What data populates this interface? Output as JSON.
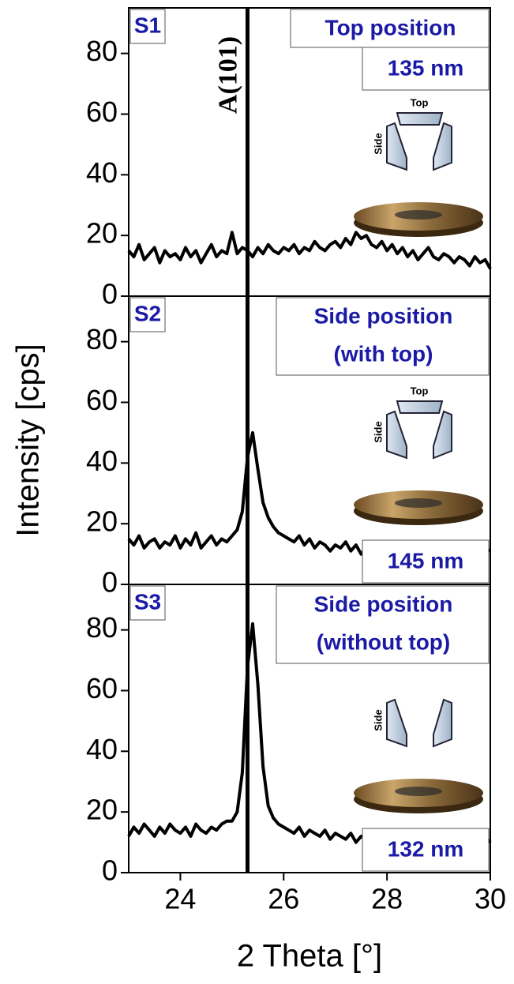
{
  "chart_data": [
    {
      "type": "line",
      "panel_label": "S1",
      "annotation": [
        "Top position"
      ],
      "thickness": "135 nm",
      "vline": 25.3,
      "vline_label": "A(101)",
      "icon": {
        "top": "Top",
        "side": "Side"
      },
      "xlim": [
        23,
        30
      ],
      "ylim": [
        0,
        95
      ],
      "yticks": [
        0,
        20,
        40,
        60,
        80
      ],
      "color": "#000000",
      "x": [
        23.0,
        23.1,
        23.2,
        23.3,
        23.4,
        23.5,
        23.6,
        23.7,
        23.8,
        23.9,
        24.0,
        24.1,
        24.2,
        24.3,
        24.4,
        24.5,
        24.6,
        24.7,
        24.8,
        24.9,
        25.0,
        25.1,
        25.2,
        25.3,
        25.4,
        25.5,
        25.6,
        25.7,
        25.8,
        25.9,
        26.0,
        26.1,
        26.2,
        26.3,
        26.4,
        26.5,
        26.6,
        26.7,
        26.8,
        26.9,
        27.0,
        27.1,
        27.2,
        27.3,
        27.4,
        27.5,
        27.6,
        27.7,
        27.8,
        27.9,
        28.0,
        28.1,
        28.2,
        28.3,
        28.4,
        28.5,
        28.6,
        28.7,
        28.8,
        28.9,
        29.0,
        29.1,
        29.2,
        29.3,
        29.4,
        29.5,
        29.6,
        29.7,
        29.8,
        29.9,
        30.0
      ],
      "values": [
        15,
        13,
        17,
        12,
        14,
        16,
        11,
        15,
        13,
        14,
        12,
        16,
        13,
        15,
        11,
        14,
        17,
        13,
        15,
        14,
        21,
        14,
        16,
        15,
        13,
        16,
        14,
        17,
        15,
        14,
        16,
        15,
        17,
        14,
        16,
        15,
        18,
        16,
        15,
        17,
        18,
        16,
        19,
        17,
        21,
        19,
        20,
        17,
        16,
        18,
        15,
        17,
        14,
        16,
        13,
        15,
        12,
        14,
        16,
        13,
        12,
        14,
        13,
        11,
        13,
        12,
        10,
        13,
        11,
        12,
        9
      ]
    },
    {
      "type": "line",
      "panel_label": "S2",
      "annotation": [
        "Side position",
        "(with top)"
      ],
      "thickness": "145 nm",
      "vline": 25.3,
      "icon": {
        "top": "Top",
        "side": "Side"
      },
      "ylabel": "Intensity [cps]",
      "xlim": [
        23,
        30
      ],
      "ylim": [
        0,
        95
      ],
      "yticks": [
        0,
        20,
        40,
        60,
        80
      ],
      "color": "#000000",
      "x": [
        23.0,
        23.1,
        23.2,
        23.3,
        23.4,
        23.5,
        23.6,
        23.7,
        23.8,
        23.9,
        24.0,
        24.1,
        24.2,
        24.3,
        24.4,
        24.5,
        24.6,
        24.7,
        24.8,
        24.9,
        25.0,
        25.1,
        25.2,
        25.3,
        25.4,
        25.5,
        25.6,
        25.7,
        25.8,
        25.9,
        26.0,
        26.1,
        26.2,
        26.3,
        26.4,
        26.5,
        26.6,
        26.7,
        26.8,
        26.9,
        27.0,
        27.1,
        27.2,
        27.3,
        27.4,
        27.5,
        27.6,
        27.7,
        27.8,
        27.9,
        28.0,
        28.1,
        28.2,
        28.3,
        28.4,
        28.5,
        28.6,
        28.7,
        28.8,
        28.9,
        29.0,
        29.1,
        29.2,
        29.3,
        29.4,
        29.5,
        29.6,
        29.7,
        29.8,
        29.9,
        30.0
      ],
      "values": [
        15,
        13,
        16,
        12,
        14,
        15,
        12,
        14,
        13,
        16,
        12,
        15,
        13,
        17,
        12,
        14,
        16,
        13,
        15,
        14,
        16,
        18,
        24,
        42,
        50,
        38,
        27,
        22,
        19,
        17,
        16,
        15,
        14,
        16,
        13,
        15,
        12,
        14,
        13,
        11,
        13,
        12,
        14,
        11,
        13,
        10,
        12,
        11,
        13,
        12,
        11,
        12,
        10,
        13,
        11,
        12,
        10,
        12,
        11,
        13,
        11,
        12,
        10,
        12,
        11,
        10,
        12,
        11,
        10,
        12,
        11
      ]
    },
    {
      "type": "line",
      "panel_label": "S3",
      "annotation": [
        "Side position",
        "(without top)"
      ],
      "thickness": "132 nm",
      "vline": 25.3,
      "icon": {
        "side": "Side"
      },
      "xlabel": "2 Theta [°]",
      "xlim": [
        23,
        30
      ],
      "ylim": [
        0,
        95
      ],
      "yticks": [
        0,
        20,
        40,
        60,
        80
      ],
      "xticks": [
        24,
        26,
        28,
        30
      ],
      "color": "#000000",
      "x": [
        23.0,
        23.1,
        23.2,
        23.3,
        23.4,
        23.5,
        23.6,
        23.7,
        23.8,
        23.9,
        24.0,
        24.1,
        24.2,
        24.3,
        24.4,
        24.5,
        24.6,
        24.7,
        24.8,
        24.9,
        25.0,
        25.1,
        25.2,
        25.3,
        25.4,
        25.5,
        25.6,
        25.7,
        25.8,
        25.9,
        26.0,
        26.1,
        26.2,
        26.3,
        26.4,
        26.5,
        26.6,
        26.7,
        26.8,
        26.9,
        27.0,
        27.1,
        27.2,
        27.3,
        27.4,
        27.5,
        27.6,
        27.7,
        27.8,
        27.9,
        28.0,
        28.1,
        28.2,
        28.3,
        28.4,
        28.5,
        28.6,
        28.7,
        28.8,
        28.9,
        29.0,
        29.1,
        29.2,
        29.3,
        29.4,
        29.5,
        29.6,
        29.7,
        29.8,
        29.9,
        30.0
      ],
      "values": [
        12,
        15,
        13,
        16,
        14,
        12,
        15,
        13,
        16,
        14,
        13,
        15,
        12,
        16,
        14,
        13,
        15,
        14,
        16,
        17,
        17,
        20,
        33,
        68,
        82,
        62,
        35,
        22,
        18,
        16,
        15,
        14,
        13,
        15,
        12,
        14,
        13,
        12,
        14,
        11,
        13,
        12,
        11,
        13,
        10,
        12,
        11,
        13,
        12,
        11,
        12,
        11,
        13,
        10,
        12,
        11,
        12,
        10,
        13,
        11,
        12,
        11,
        10,
        12,
        11,
        13,
        10,
        12,
        11,
        12,
        10
      ]
    }
  ]
}
